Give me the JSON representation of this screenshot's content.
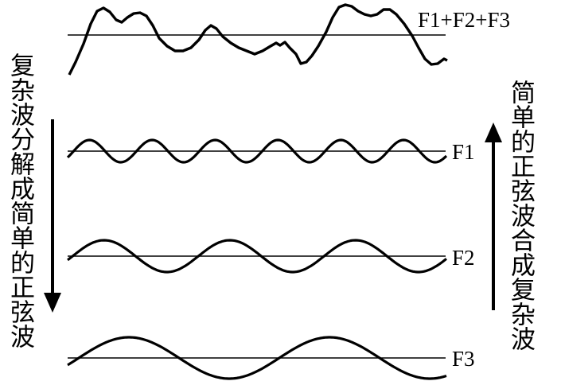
{
  "labels": {
    "sum": "F1+F2+F3",
    "f1": "F1",
    "f2": "F2",
    "f3": "F3"
  },
  "left_text": "复杂波分解成简单的正弦波",
  "right_text": "简单的正弦波合成复杂波",
  "colors": {
    "ink": "#000000",
    "background": "#ffffff"
  },
  "icons": {
    "left_arrow": "arrow-down-icon",
    "right_arrow": "arrow-up-icon"
  }
}
